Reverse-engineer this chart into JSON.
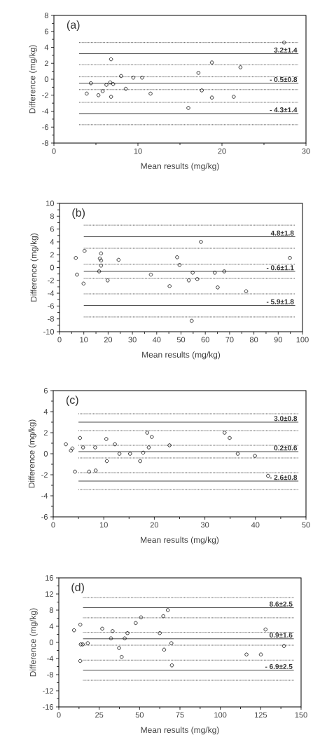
{
  "chart_data": [
    {
      "type": "scatter",
      "xlabel": "Mean results (mg/kg)",
      "ylabel": "Difference (mg/kg)",
      "annotations": [
        "(a)"
      ],
      "marker": "circle",
      "xlim": [
        0,
        30
      ],
      "xticks": [
        0,
        10,
        20,
        30
      ],
      "ylim": [
        -8,
        8
      ],
      "yticks": [
        -8,
        -6,
        -4,
        -2,
        0,
        2,
        4,
        6,
        8
      ],
      "series": [
        {
          "color": "#000000",
          "x": [
            3.9,
            4.4,
            5.3,
            5.8,
            6.25,
            6.7,
            6.8,
            6.8,
            7.05,
            8.0,
            8.55,
            9.45,
            10.5,
            11.5,
            16.0,
            17.2,
            17.6,
            18.8,
            18.8,
            21.4,
            22.2,
            27.4
          ],
          "values": [
            -1.8,
            -0.5,
            -2.0,
            -1.5,
            -0.7,
            -0.4,
            2.5,
            -2.2,
            -0.6,
            0.4,
            -1.2,
            0.2,
            0.2,
            -1.8,
            -3.6,
            0.8,
            -1.4,
            2.1,
            -2.3,
            -2.2,
            1.5,
            4.6
          ]
        }
      ],
      "ref_lines": [
        {
          "axis": "y",
          "value": 3.2,
          "label": "3.2±1.4",
          "line_style": "solid"
        },
        {
          "axis": "y",
          "value": -0.5,
          "label": "- 0.5±0.8",
          "line_style": "solid"
        },
        {
          "axis": "y",
          "value": -4.3,
          "label": "- 4.3±1.4",
          "line_style": "solid"
        },
        {
          "axis": "y",
          "value": 4.6,
          "line_style": "dotted"
        },
        {
          "axis": "y",
          "value": 1.8,
          "line_style": "dotted"
        },
        {
          "axis": "y",
          "value": 0.3,
          "line_style": "dotted"
        },
        {
          "axis": "y",
          "value": -1.3,
          "line_style": "dotted"
        },
        {
          "axis": "y",
          "value": -2.9,
          "line_style": "dotted"
        },
        {
          "axis": "y",
          "value": -5.7,
          "line_style": "dotted"
        }
      ]
    },
    {
      "type": "scatter",
      "xlabel": "Mean results (mg/kg)",
      "ylabel": "Difference (mg/kg)",
      "annotations": [
        "(b)"
      ],
      "marker": "circle",
      "xlim": [
        0,
        100
      ],
      "xticks": [
        0,
        10,
        20,
        30,
        40,
        50,
        60,
        70,
        80,
        90,
        100
      ],
      "ylim": [
        -10,
        10
      ],
      "yticks": [
        -10,
        -8,
        -6,
        -4,
        -2,
        0,
        2,
        4,
        6,
        8,
        10
      ],
      "series": [
        {
          "color": "#000000",
          "x": [
            6.7,
            7.2,
            9.9,
            10.3,
            16.3,
            16.6,
            17.1,
            17.1,
            17.1,
            19.8,
            24.3,
            37.6,
            45.3,
            48.4,
            49.4,
            53.2,
            54.4,
            54.8,
            56.7,
            58.2,
            63.9,
            65.1,
            67.8,
            76.8,
            94.8
          ],
          "values": [
            1.5,
            -1.1,
            -2.5,
            2.6,
            -0.6,
            1.4,
            2.2,
            1.1,
            0.3,
            -2.0,
            1.2,
            -1.1,
            -2.9,
            1.6,
            0.4,
            -2.0,
            -8.3,
            -0.8,
            -1.8,
            4.0,
            -0.8,
            -3.1,
            -0.6,
            -3.7,
            1.5
          ]
        }
      ],
      "ref_lines": [
        {
          "axis": "y",
          "value": 4.8,
          "label": "4.8±1.8",
          "line_style": "solid"
        },
        {
          "axis": "y",
          "value": -0.6,
          "label": "- 0.6±1.1",
          "line_style": "solid"
        },
        {
          "axis": "y",
          "value": -5.9,
          "label": "- 5.9±1.8",
          "line_style": "solid"
        },
        {
          "axis": "y",
          "value": 6.6,
          "line_style": "dotted"
        },
        {
          "axis": "y",
          "value": 3.0,
          "line_style": "dotted"
        },
        {
          "axis": "y",
          "value": 0.5,
          "line_style": "dotted"
        },
        {
          "axis": "y",
          "value": -1.7,
          "line_style": "dotted"
        },
        {
          "axis": "y",
          "value": -4.1,
          "line_style": "dotted"
        },
        {
          "axis": "y",
          "value": -7.7,
          "line_style": "dotted"
        }
      ]
    },
    {
      "type": "scatter",
      "xlabel": "Mean results (mg/kg)",
      "ylabel": "Difference (mg/kg)",
      "annotations": [
        "(c)"
      ],
      "marker": "circle",
      "xlim": [
        0,
        50
      ],
      "xticks": [
        0,
        10,
        20,
        30,
        40,
        50
      ],
      "ylim": [
        -6,
        6
      ],
      "yticks": [
        -6,
        -4,
        -2,
        0,
        2,
        4,
        6
      ],
      "series": [
        {
          "color": "#000000",
          "x": [
            2.5,
            3.5,
            3.8,
            4.3,
            5.3,
            5.9,
            7.1,
            8.3,
            8.4,
            10.5,
            10.6,
            12.2,
            13.1,
            15.2,
            17.2,
            17.8,
            18.6,
            18.9,
            19.5,
            23.0,
            33.9,
            34.9,
            36.5,
            39.9,
            42.5
          ],
          "values": [
            0.9,
            0.3,
            0.5,
            -1.7,
            1.5,
            0.6,
            -1.7,
            0.6,
            -1.6,
            1.4,
            -0.7,
            0.9,
            0.0,
            0.0,
            -0.7,
            0.1,
            2.0,
            0.6,
            1.6,
            0.8,
            2.0,
            1.5,
            0.0,
            -0.2,
            -2.1
          ]
        }
      ],
      "ref_lines": [
        {
          "axis": "y",
          "value": 3.0,
          "label": "3.0±0.8",
          "line_style": "solid"
        },
        {
          "axis": "y",
          "value": 0.2,
          "label": "0.2±0.6",
          "line_style": "solid"
        },
        {
          "axis": "y",
          "value": -2.6,
          "label": "- 2.6±0.8",
          "line_style": "solid"
        },
        {
          "axis": "y",
          "value": 3.8,
          "line_style": "dotted"
        },
        {
          "axis": "y",
          "value": 2.2,
          "line_style": "dotted"
        },
        {
          "axis": "y",
          "value": 0.8,
          "line_style": "dotted"
        },
        {
          "axis": "y",
          "value": -0.4,
          "line_style": "dotted"
        },
        {
          "axis": "y",
          "value": -1.8,
          "line_style": "dotted"
        },
        {
          "axis": "y",
          "value": -3.4,
          "line_style": "dotted"
        }
      ]
    },
    {
      "type": "scatter",
      "xlabel": "Mean results (mg/kg)",
      "ylabel": "Difference (mg/kg)",
      "annotations": [
        "(d)"
      ],
      "marker": "circle",
      "xlim": [
        0,
        150
      ],
      "xticks": [
        0,
        25,
        50,
        75,
        100,
        125,
        150
      ],
      "ylim": [
        -16,
        16
      ],
      "yticks": [
        -16,
        -12,
        -8,
        -4,
        0,
        4,
        8,
        12,
        16
      ],
      "series": [
        {
          "color": "#000000",
          "x": [
            9.4,
            13.3,
            13.3,
            13.6,
            14.8,
            17.9,
            26.9,
            32.3,
            33.3,
            37.3,
            38.9,
            40.8,
            42.5,
            47.6,
            50.9,
            62.5,
            64.7,
            65.2,
            67.5,
            69.7,
            70.0,
            116.2,
            125.1,
            128.0,
            139.4
          ],
          "values": [
            3.0,
            4.4,
            -4.6,
            -0.5,
            -0.5,
            -0.2,
            3.4,
            1.0,
            2.8,
            -1.4,
            -3.6,
            1.0,
            2.3,
            4.8,
            6.2,
            2.3,
            6.5,
            -1.8,
            8.0,
            -0.2,
            -5.7,
            -3.0,
            -3.0,
            3.2,
            -0.9
          ]
        }
      ],
      "ref_lines": [
        {
          "axis": "y",
          "value": 8.6,
          "label": "8.6±2.5",
          "line_style": "solid"
        },
        {
          "axis": "y",
          "value": 0.9,
          "label": "0.9±1.6",
          "line_style": "solid"
        },
        {
          "axis": "y",
          "value": -6.9,
          "label": "- 6.9±2.5",
          "line_style": "solid"
        },
        {
          "axis": "y",
          "value": 11.1,
          "line_style": "dotted"
        },
        {
          "axis": "y",
          "value": 6.1,
          "line_style": "dotted"
        },
        {
          "axis": "y",
          "value": 2.5,
          "line_style": "dotted"
        },
        {
          "axis": "y",
          "value": -0.7,
          "line_style": "dotted"
        },
        {
          "axis": "y",
          "value": -4.4,
          "line_style": "dotted"
        },
        {
          "axis": "y",
          "value": -9.4,
          "line_style": "dotted"
        }
      ]
    }
  ]
}
